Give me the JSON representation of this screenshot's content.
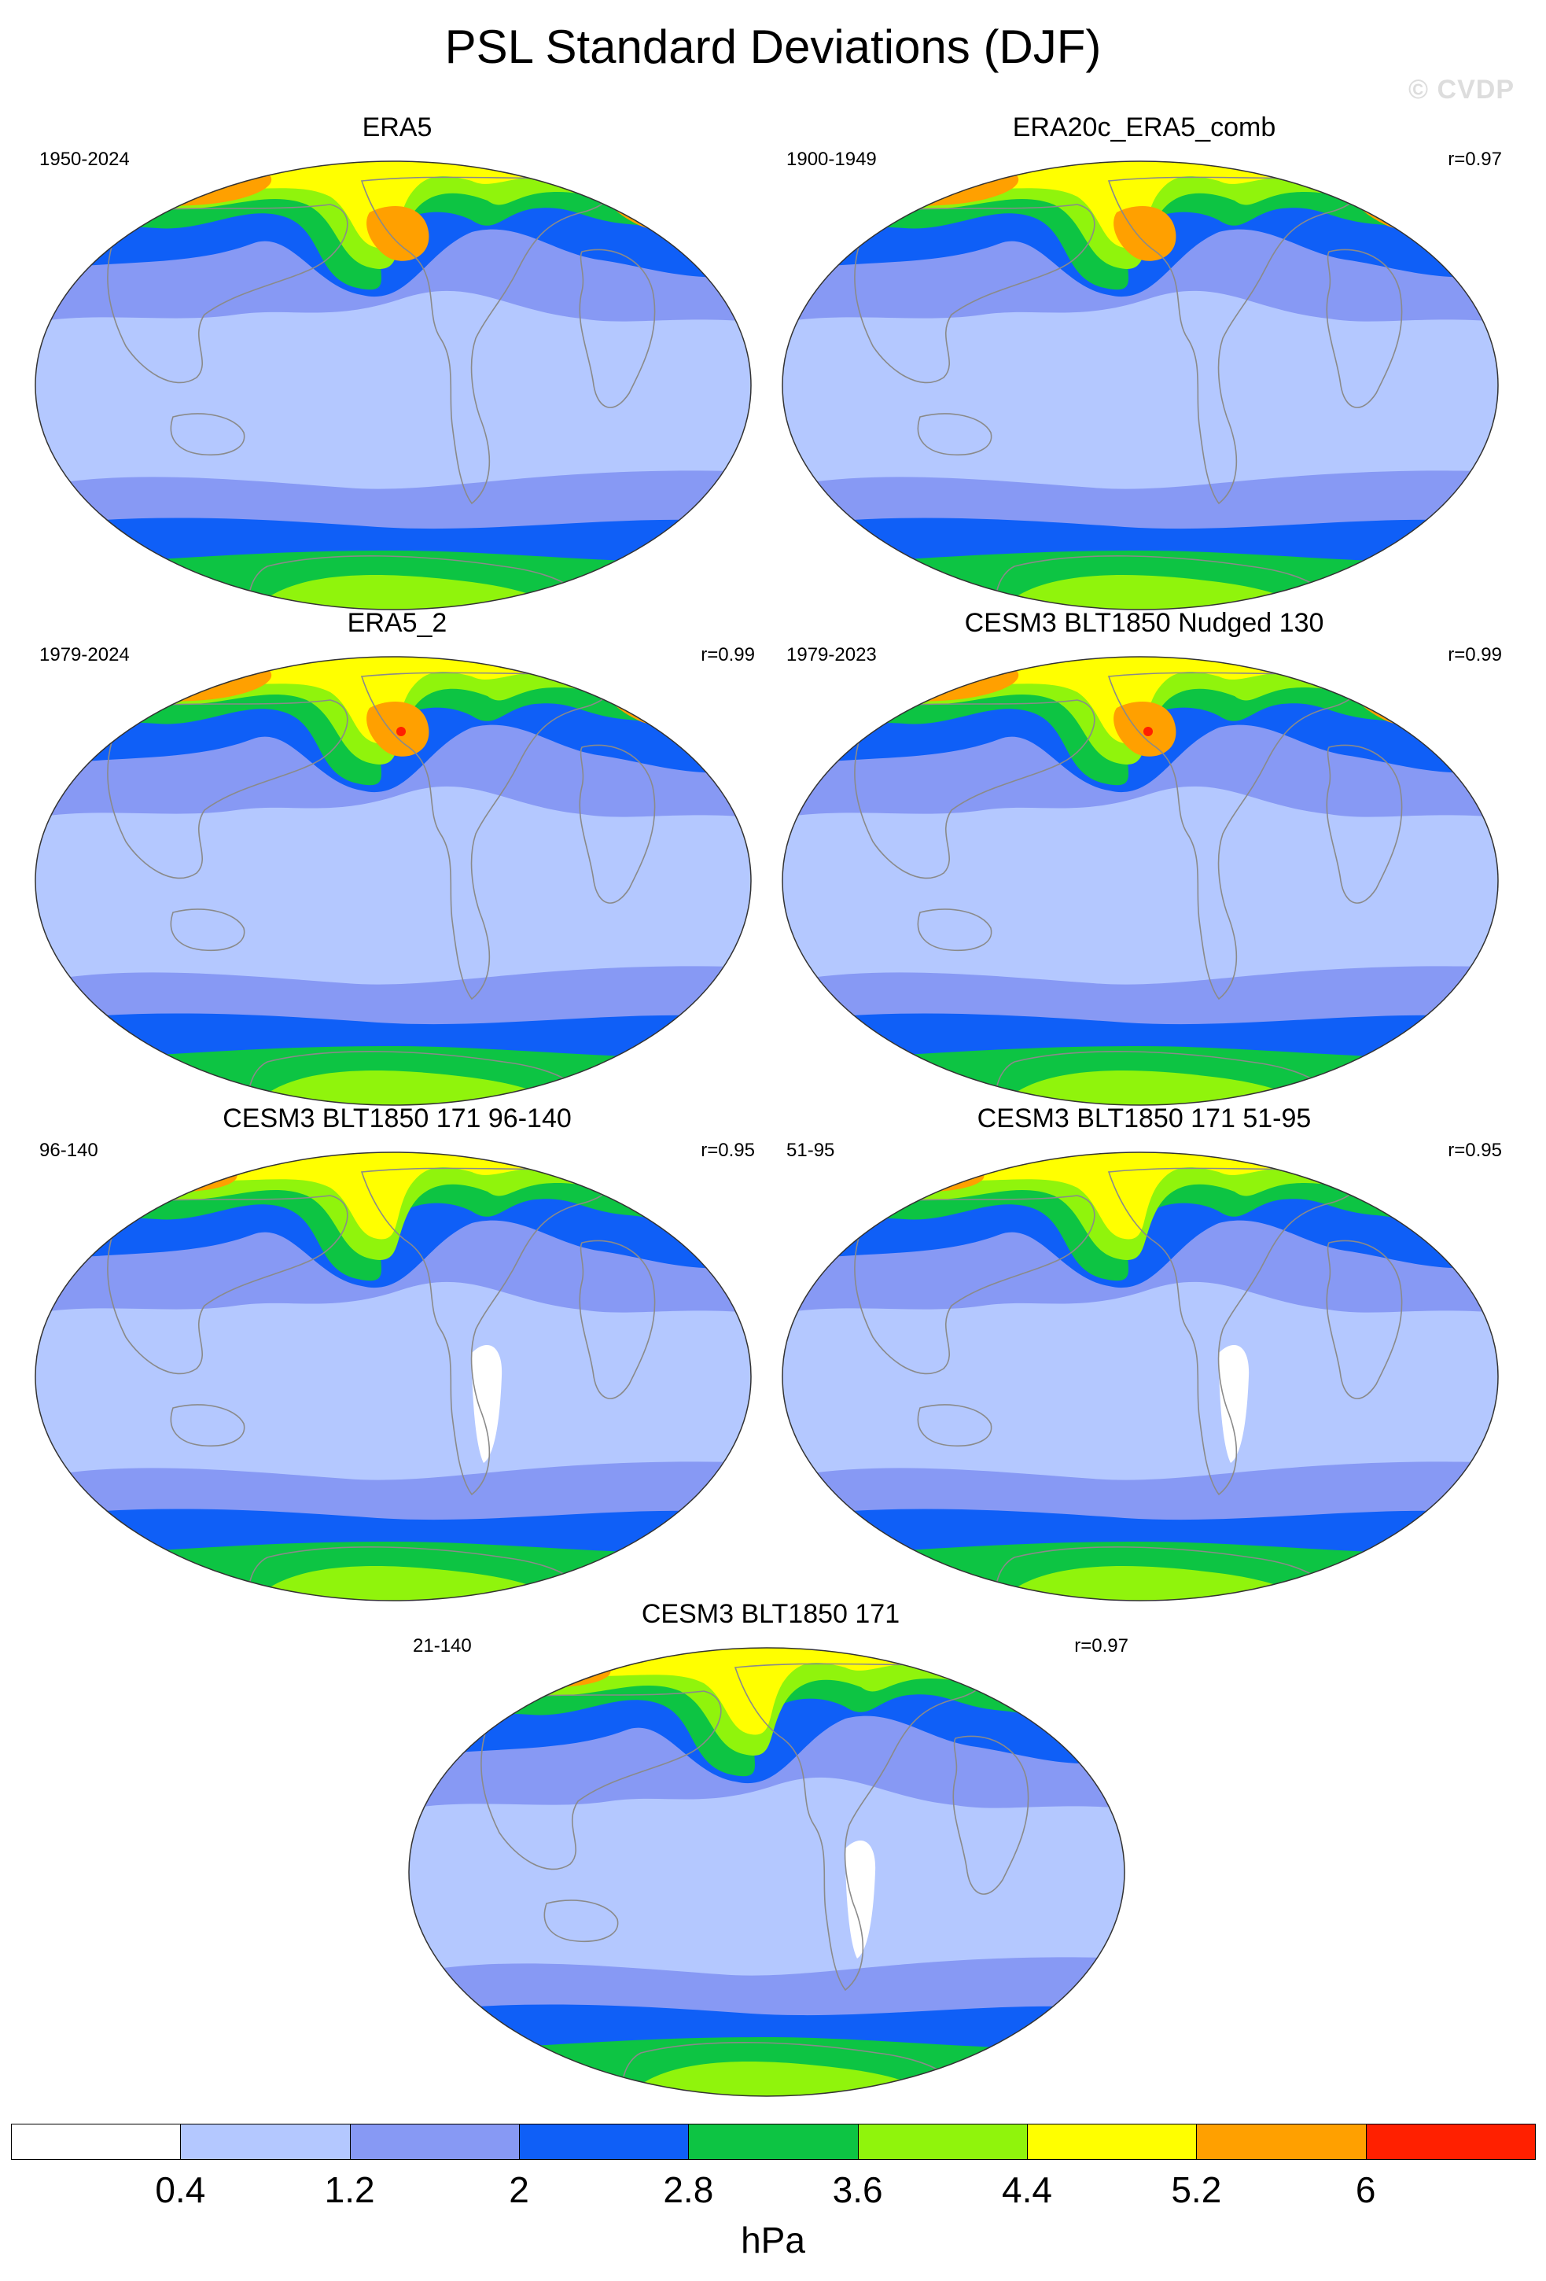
{
  "title": "PSL Standard Deviations (DJF)",
  "watermark": "© CVDP",
  "colors": {
    "levels": [
      "#ffffff",
      "#b4c8ff",
      "#8799f4",
      "#0f5ff7",
      "#0dc443",
      "#90f40c",
      "#ffff00",
      "#ffa000",
      "#ff2000"
    ],
    "land_outline": "#8a8a8a",
    "map_border": "#333333"
  },
  "panels": [
    {
      "title": "ERA5",
      "years": "1950-2024",
      "r": "",
      "variant": 0
    },
    {
      "title": "ERA20c_ERA5_comb",
      "years": "1900-1949",
      "r": "r=0.97",
      "variant": 1
    },
    {
      "title": "ERA5_2",
      "years": "1979-2024",
      "r": "r=0.99",
      "variant": 2
    },
    {
      "title": "CESM3 BLT1850 Nudged 130",
      "years": "1979-2023",
      "r": "r=0.99",
      "variant": 2
    },
    {
      "title": "CESM3 BLT1850 171 96-140",
      "years": "96-140",
      "r": "r=0.95",
      "variant": 3
    },
    {
      "title": "CESM3 BLT1850 171 51-95",
      "years": "51-95",
      "r": "r=0.95",
      "variant": 3
    },
    {
      "title": "CESM3 BLT1850 171",
      "years": "21-140",
      "r": "r=0.97",
      "variant": 3
    }
  ],
  "colorbar": {
    "ticks": [
      "0.4",
      "1.2",
      "2",
      "2.8",
      "3.6",
      "4.4",
      "5.2",
      "6"
    ],
    "units": "hPa"
  }
}
